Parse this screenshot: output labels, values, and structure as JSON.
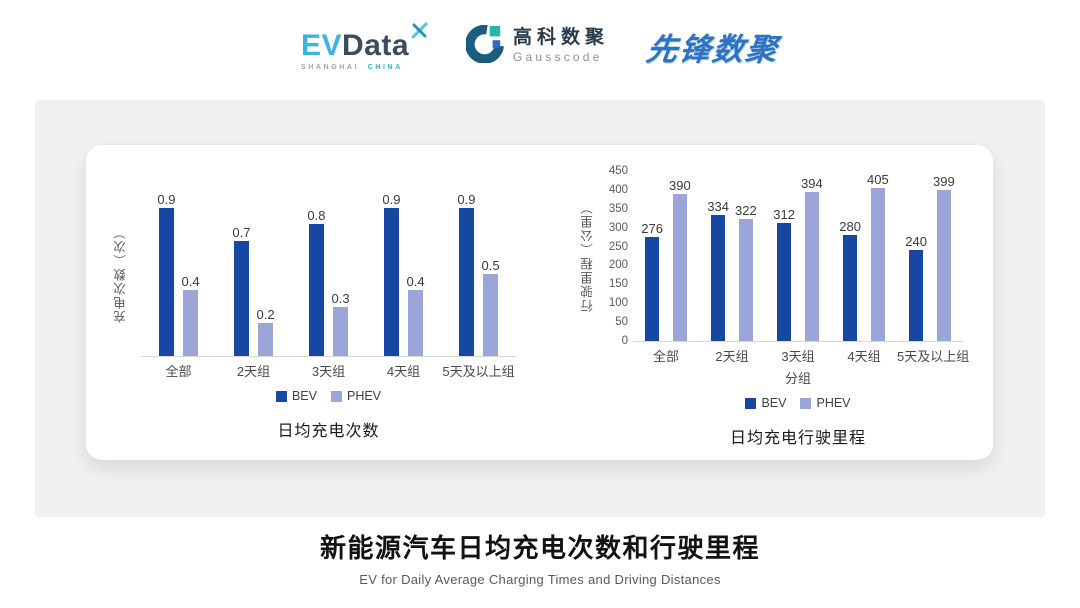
{
  "header": {
    "evdata": {
      "ev": "EV",
      "data": "Data",
      "sub_left": "SHANGHAI",
      "sub_right": "CHINA"
    },
    "gausscode": {
      "cn": "高科数聚",
      "en": "Gausscode"
    },
    "xianfeng": {
      "name": "先锋数聚"
    }
  },
  "colors": {
    "bev": "#1547A3",
    "phev": "#9BA5D7",
    "panel": "#F0F0F1",
    "axis_line": "#D8D8D8",
    "tick_text": "#595959"
  },
  "chart_data": [
    {
      "type": "bar",
      "title": "日均充电次数",
      "xlabel": "",
      "ylabel": "充电次数（次）",
      "categories": [
        "全部",
        "2天组",
        "3天组",
        "4天组",
        "5天及以上组"
      ],
      "series": [
        {
          "name": "BEV",
          "color": "#1547A3",
          "values": [
            0.9,
            0.7,
            0.8,
            0.9,
            0.9
          ]
        },
        {
          "name": "PHEV",
          "color": "#9BA5D7",
          "values": [
            0.4,
            0.2,
            0.3,
            0.4,
            0.5
          ]
        }
      ],
      "ylim": [
        0,
        1
      ],
      "yticks": [],
      "grid": false,
      "legend_position": "bottom"
    },
    {
      "type": "bar",
      "title": "日均充电行驶里程",
      "xlabel": "分组",
      "ylabel": "行驶里程（公里）",
      "categories": [
        "全部",
        "2天组",
        "3天组",
        "4天组",
        "5天及以上组"
      ],
      "series": [
        {
          "name": "BEV",
          "color": "#1547A3",
          "values": [
            276,
            334,
            312,
            280,
            240
          ]
        },
        {
          "name": "PHEV",
          "color": "#9BA5D7",
          "values": [
            390,
            322,
            394,
            405,
            399
          ]
        }
      ],
      "ylim": [
        0,
        450
      ],
      "yticks": [
        0,
        50,
        100,
        150,
        200,
        250,
        300,
        350,
        400,
        450
      ],
      "grid": false,
      "legend_position": "bottom"
    }
  ],
  "footer": {
    "title": "新能源汽车日均充电次数和行驶里程",
    "subtitle": "EV for Daily Average Charging Times and Driving Distances"
  }
}
